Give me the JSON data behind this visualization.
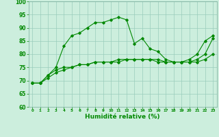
{
  "title": "",
  "xlabel": "Humidité relative (%)",
  "ylabel": "",
  "background_color": "#cceedd",
  "grid_color": "#99ccbb",
  "line_color": "#008800",
  "ylim": [
    60,
    100
  ],
  "xlim": [
    -0.5,
    23.5
  ],
  "yticks": [
    60,
    65,
    70,
    75,
    80,
    85,
    90,
    95,
    100
  ],
  "xticks": [
    0,
    1,
    2,
    3,
    4,
    5,
    6,
    7,
    8,
    9,
    10,
    11,
    12,
    13,
    14,
    15,
    16,
    17,
    18,
    19,
    20,
    21,
    22,
    23
  ],
  "line1_x": [
    0,
    1,
    2,
    3,
    4,
    5,
    6,
    7,
    8,
    9,
    10,
    11,
    12,
    13,
    14,
    15,
    16,
    17,
    18,
    19,
    20,
    21,
    22,
    23
  ],
  "line1_y": [
    69,
    69,
    72,
    75,
    83,
    87,
    88,
    90,
    92,
    92,
    93,
    94,
    93,
    84,
    86,
    82,
    81,
    78,
    77,
    77,
    78,
    80,
    85,
    87
  ],
  "line2_x": [
    0,
    1,
    2,
    3,
    4,
    5,
    6,
    7,
    8,
    9,
    10,
    11,
    12,
    13,
    14,
    15,
    16,
    17,
    18,
    19,
    20,
    21,
    22,
    23
  ],
  "line2_y": [
    69,
    69,
    72,
    74,
    75,
    75,
    76,
    76,
    77,
    77,
    77,
    78,
    78,
    78,
    78,
    78,
    78,
    77,
    77,
    77,
    77,
    78,
    80,
    86
  ],
  "line3_x": [
    0,
    1,
    2,
    3,
    4,
    5,
    6,
    7,
    8,
    9,
    10,
    11,
    12,
    13,
    14,
    15,
    16,
    17,
    18,
    19,
    20,
    21,
    22,
    23
  ],
  "line3_y": [
    69,
    69,
    71,
    73,
    74,
    75,
    76,
    76,
    77,
    77,
    77,
    77,
    78,
    78,
    78,
    78,
    77,
    77,
    77,
    77,
    77,
    77,
    78,
    80
  ]
}
